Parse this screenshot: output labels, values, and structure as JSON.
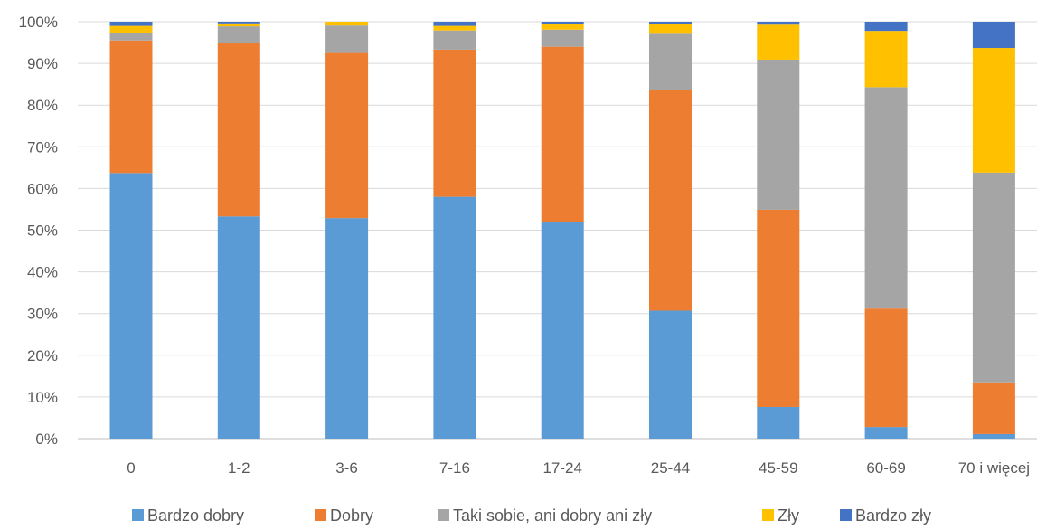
{
  "chart_data": {
    "type": "bar",
    "stacked": true,
    "normalized": true,
    "categories": [
      "0",
      "1-2",
      "3-6",
      "7-16",
      "17-24",
      "25-44",
      "45-59",
      "60-69",
      "70 i więcej"
    ],
    "series": [
      {
        "name": "Bardzo dobry",
        "color": "#5B9BD5",
        "values": [
          63.7,
          53.3,
          52.9,
          58.0,
          52.0,
          30.7,
          7.6,
          2.8,
          1.1
        ]
      },
      {
        "name": "Dobry",
        "color": "#ED7D31",
        "values": [
          31.8,
          41.7,
          39.6,
          35.3,
          42.0,
          53.0,
          47.3,
          28.4,
          12.4
        ]
      },
      {
        "name": "Taki sobie, ani dobry ani zły",
        "color": "#A5A5A5",
        "values": [
          1.8,
          3.9,
          6.6,
          4.6,
          4.1,
          13.4,
          36.0,
          53.1,
          50.3
        ]
      },
      {
        "name": "Zły",
        "color": "#FFC000",
        "values": [
          1.7,
          0.7,
          0.9,
          1.1,
          1.4,
          2.3,
          8.4,
          13.5,
          29.9
        ]
      },
      {
        "name": "Bardzo zły",
        "color": "#4472C4",
        "values": [
          1.0,
          0.4,
          0.0,
          1.0,
          0.5,
          0.6,
          0.7,
          2.2,
          6.3
        ]
      }
    ],
    "y_ticks": [
      "0%",
      "10%",
      "20%",
      "30%",
      "40%",
      "50%",
      "60%",
      "70%",
      "80%",
      "90%",
      "100%"
    ],
    "ylim": [
      0,
      100
    ],
    "grid": true,
    "legend_position": "bottom",
    "title": "",
    "xlabel": "",
    "ylabel": ""
  }
}
